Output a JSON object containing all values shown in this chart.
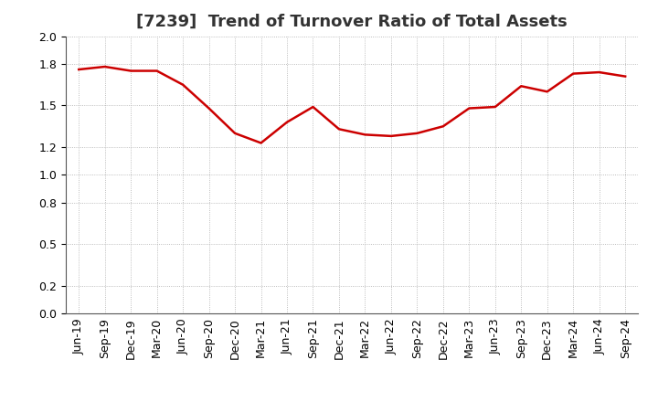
{
  "title": "[7239]  Trend of Turnover Ratio of Total Assets",
  "x_labels": [
    "Jun-19",
    "Sep-19",
    "Dec-19",
    "Mar-20",
    "Jun-20",
    "Sep-20",
    "Dec-20",
    "Mar-21",
    "Jun-21",
    "Sep-21",
    "Dec-21",
    "Mar-22",
    "Jun-22",
    "Sep-22",
    "Dec-22",
    "Mar-23",
    "Jun-23",
    "Sep-23",
    "Dec-23",
    "Mar-24",
    "Jun-24",
    "Sep-24"
  ],
  "values": [
    1.76,
    1.78,
    1.75,
    1.75,
    1.65,
    1.48,
    1.3,
    1.23,
    1.38,
    1.49,
    1.33,
    1.29,
    1.28,
    1.3,
    1.35,
    1.48,
    1.49,
    1.64,
    1.6,
    1.73,
    1.74,
    1.71
  ],
  "line_color": "#cc0000",
  "line_width": 1.8,
  "ylim": [
    0.0,
    2.0
  ],
  "yticks": [
    0.0,
    0.2,
    0.5,
    0.8,
    1.0,
    1.2,
    1.5,
    1.8,
    2.0
  ],
  "background_color": "#ffffff",
  "grid_color": "#aaaaaa",
  "title_fontsize": 13,
  "tick_fontsize": 9,
  "title_color": "#333333"
}
